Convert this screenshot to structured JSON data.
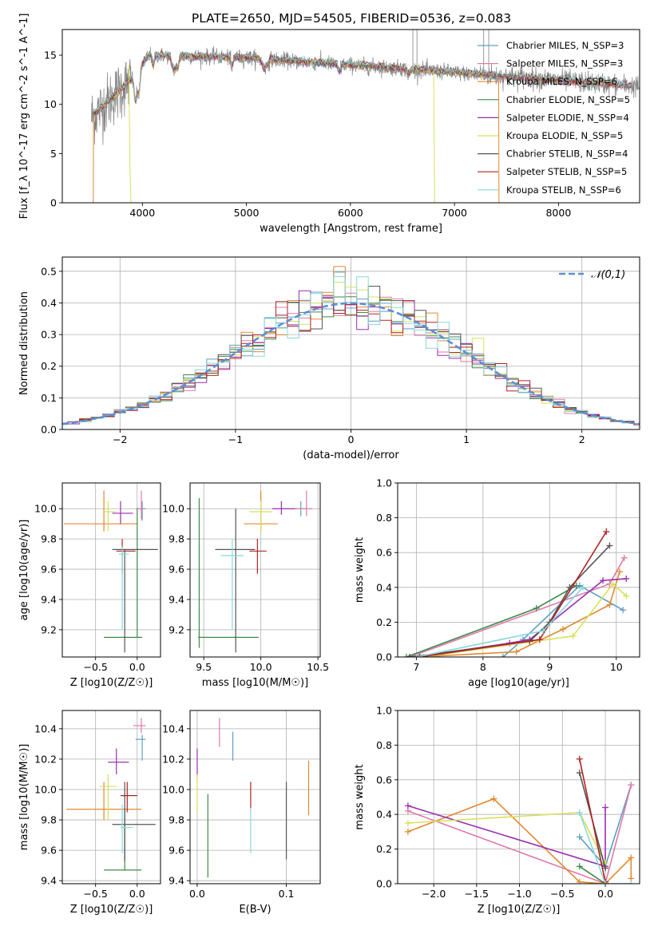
{
  "figure": {
    "title": "PLATE=2650, MJD=54505, FIBERID=0536, z=0.083"
  },
  "chart_data": [
    {
      "id": "spectrum",
      "type": "line",
      "xlabel": "wavelength [Angstrom, rest frame]",
      "ylabel": "Flux [f_λ 10^-17 erg cm^-2 s^-1 A^-1]",
      "xlim": [
        3230,
        8780
      ],
      "ylim": [
        0,
        17.6
      ],
      "xticks": [
        4000,
        5000,
        6000,
        7000,
        8000
      ],
      "yticks": [
        0,
        5,
        10,
        15
      ],
      "grid": false,
      "legend_position": "right",
      "series": [
        {
          "name": "Chabrier MILES, N_SSP=3",
          "color": "#5e9fc4"
        },
        {
          "name": "Salpeter MILES, N_SSP=3",
          "color": "#e07aa8"
        },
        {
          "name": "Kroupa MILES, N_SSP=6",
          "color": "#e08a30"
        },
        {
          "name": "Chabrier ELODIE, N_SSP=5",
          "color": "#3f8a4a"
        },
        {
          "name": "Salpeter ELODIE, N_SSP=4",
          "color": "#9a2fb0"
        },
        {
          "name": "Kroupa ELODIE, N_SSP=5",
          "color": "#d8e05a"
        },
        {
          "name": "Chabrier STELIB, N_SSP=4",
          "color": "#555555"
        },
        {
          "name": "Salpeter STELIB, N_SSP=5",
          "color": "#b22222"
        },
        {
          "name": "Kroupa STELIB, N_SSP=6",
          "color": "#88d8dc"
        }
      ],
      "data_color": "#808080"
    },
    {
      "id": "residuals",
      "type": "histogram",
      "xlabel": "(data-model)/error",
      "ylabel": "Normed distribution",
      "xlim": [
        -2.5,
        2.5
      ],
      "ylim": [
        0,
        0.545
      ],
      "xticks": [
        -2,
        -1,
        0,
        1,
        2
      ],
      "yticks": [
        0.0,
        0.1,
        0.2,
        0.3,
        0.4,
        0.5
      ],
      "grid": true,
      "legend": "𝒩(0,1)",
      "legend_position": "top-right"
    },
    {
      "id": "age_vs_Z",
      "type": "errorbar",
      "xlabel": "Z [log10(Z/Z☉)]",
      "ylabel": "age  [log10(age/yr)]",
      "xlim": [
        -0.9,
        0.28
      ],
      "ylim": [
        9.02,
        10.17
      ],
      "xticks": [
        -0.5,
        0.0
      ],
      "yticks": [
        9.2,
        9.4,
        9.6,
        9.8,
        10.0
      ],
      "grid": true
    },
    {
      "id": "age_vs_mass",
      "type": "errorbar",
      "xlabel": "mass [log10(M/M☉)]",
      "ylabel": "",
      "xlim": [
        9.38,
        10.52
      ],
      "ylim": [
        9.02,
        10.17
      ],
      "xticks": [
        9.5,
        10.0,
        10.5
      ],
      "yticks": [
        9.2,
        9.4,
        9.6,
        9.8,
        10.0
      ],
      "grid": true
    },
    {
      "id": "weight_vs_age",
      "type": "line",
      "xlabel": "age  [log10(age/yr)]",
      "ylabel": "mass weight",
      "xlim": [
        6.72,
        10.35
      ],
      "ylim": [
        0,
        1.0
      ],
      "xticks": [
        7,
        8,
        9,
        10
      ],
      "yticks": [
        0.0,
        0.2,
        0.4,
        0.6,
        0.8,
        1.0
      ],
      "grid": true
    },
    {
      "id": "mass_vs_Z",
      "type": "errorbar",
      "xlabel": "Z [log10(Z/Z☉)]",
      "ylabel": "mass [log10(M/M☉)]",
      "xlim": [
        -0.9,
        0.28
      ],
      "ylim": [
        9.38,
        10.52
      ],
      "xticks": [
        -0.5,
        0.0
      ],
      "yticks": [
        9.4,
        9.6,
        9.8,
        10.0,
        10.2,
        10.4
      ],
      "grid": true
    },
    {
      "id": "mass_vs_ebv",
      "type": "errorbar",
      "xlabel": "E(B-V)",
      "ylabel": "",
      "xlim": [
        -0.008,
        0.138
      ],
      "ylim": [
        9.38,
        10.52
      ],
      "xticks": [
        0.0,
        0.1
      ],
      "yticks": [
        9.4,
        9.6,
        9.8,
        10.0,
        10.2,
        10.4
      ],
      "grid": true
    },
    {
      "id": "weight_vs_Z",
      "type": "line",
      "xlabel": "Z [log10(Z/Z☉)]",
      "ylabel": "mass weight",
      "xlim": [
        -2.42,
        0.4
      ],
      "ylim": [
        0,
        1.0
      ],
      "xticks": [
        -2.0,
        -1.5,
        -1.0,
        -0.5,
        0.0
      ],
      "yticks": [
        0.0,
        0.2,
        0.4,
        0.6,
        0.8,
        1.0
      ],
      "grid": true
    }
  ]
}
